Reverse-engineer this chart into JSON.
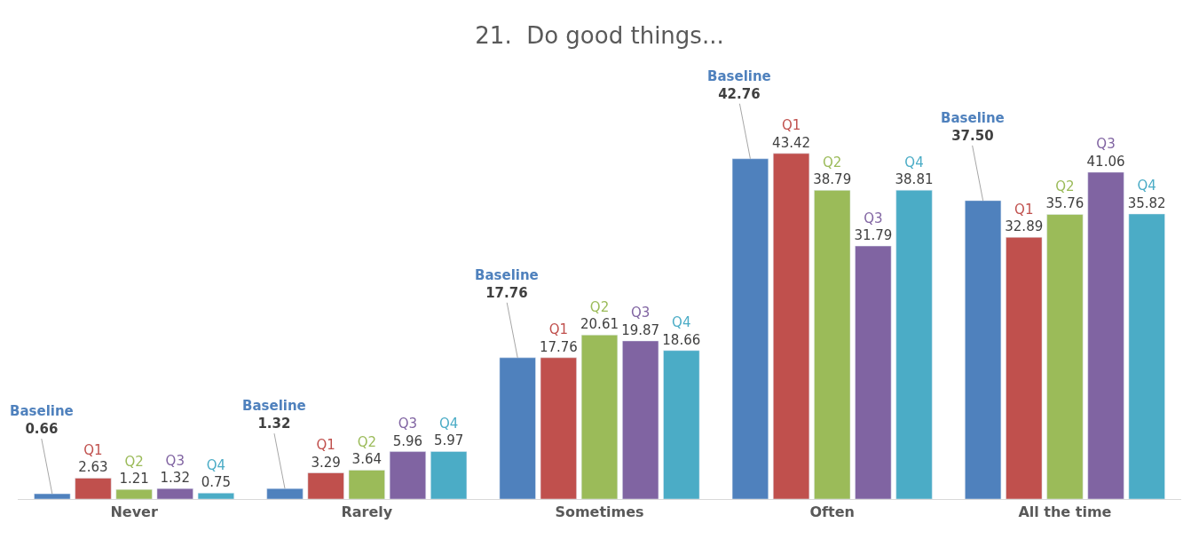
{
  "chart_data": {
    "type": "bar",
    "title": "21.  Do good things...",
    "categories": [
      "Never",
      "Rarely",
      "Sometimes",
      "Often",
      "All the time"
    ],
    "series": [
      {
        "name": "Baseline",
        "color": "#4f81bd",
        "values": [
          0.66,
          1.32,
          17.76,
          42.76,
          37.5
        ],
        "value_labels": [
          "0.66",
          "1.32",
          "17.76",
          "42.76",
          "37.50"
        ]
      },
      {
        "name": "Q1",
        "color": "#c0504d",
        "values": [
          2.63,
          3.29,
          17.76,
          43.42,
          32.89
        ],
        "value_labels": [
          "2.63",
          "3.29",
          "17.76",
          "43.42",
          "32.89"
        ]
      },
      {
        "name": "Q2",
        "color": "#9bbb59",
        "values": [
          1.21,
          3.64,
          20.61,
          38.79,
          35.76
        ],
        "value_labels": [
          "1.21",
          "3.64",
          "20.61",
          "38.79",
          "35.76"
        ]
      },
      {
        "name": "Q3",
        "color": "#8064a2",
        "values": [
          1.32,
          5.96,
          19.87,
          31.79,
          41.06
        ],
        "value_labels": [
          "1.32",
          "5.96",
          "19.87",
          "31.79",
          "41.06"
        ]
      },
      {
        "name": "Q4",
        "color": "#4bacc6",
        "values": [
          0.75,
          5.97,
          18.66,
          38.81,
          35.82
        ],
        "value_labels": [
          "0.75",
          "5.97",
          "18.66",
          "38.81",
          "35.82"
        ]
      }
    ],
    "grid": false,
    "legend": false
  }
}
